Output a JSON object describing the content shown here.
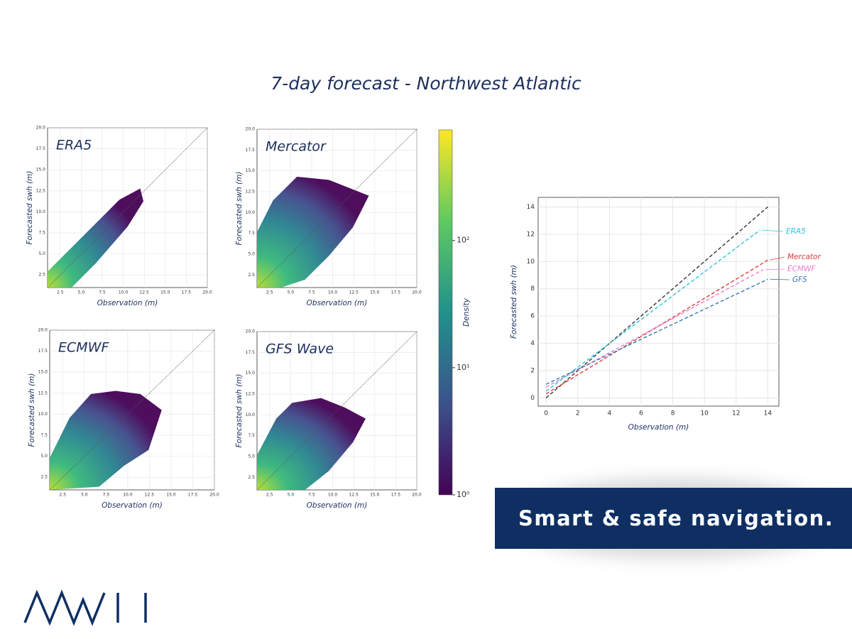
{
  "title": "7-day forecast - Northwest Atlantic",
  "banner": "Smart & safe navigation.",
  "chart_data": [
    {
      "type": "density",
      "title": "ERA5",
      "x_label": "Observation (m)",
      "y_label": "Forecasted swh (m)",
      "xlim": [
        1,
        20
      ],
      "ylim": [
        1,
        20
      ],
      "xticks": [
        2.5,
        {
          "value": 5,
          "label": "5.0"
        },
        7.5,
        {
          "value": 10,
          "label": "10.0"
        },
        12.5,
        {
          "value": 15,
          "label": "15.0"
        },
        17.5,
        {
          "value": 20,
          "label": "20.0"
        }
      ],
      "yticks": [
        2.5,
        {
          "value": 5,
          "label": "5.0"
        },
        7.5,
        {
          "value": 10,
          "label": "10.0"
        },
        12.5,
        {
          "value": 15,
          "label": "15.0"
        },
        17.5,
        {
          "value": 20,
          "label": "20.0"
        }
      ],
      "grid": true
    },
    {
      "type": "density",
      "title": "Mercator",
      "x_label": "Observation (m)",
      "y_label": "Forecasted swh (m)",
      "xlim": [
        1,
        20
      ],
      "ylim": [
        1,
        20
      ],
      "xticks": [
        2.5,
        {
          "value": 5,
          "label": "5.0"
        },
        7.5,
        {
          "value": 10,
          "label": "10.0"
        },
        12.5,
        {
          "value": 15,
          "label": "15.0"
        },
        17.5,
        {
          "value": 20,
          "label": "20.0"
        }
      ],
      "yticks": [
        2.5,
        {
          "value": 5,
          "label": "5.0"
        },
        7.5,
        {
          "value": 10,
          "label": "10.0"
        },
        12.5,
        {
          "value": 15,
          "label": "15.0"
        },
        17.5,
        {
          "value": 20,
          "label": "20.0"
        }
      ],
      "grid": true
    },
    {
      "type": "density",
      "title": "ECMWF",
      "x_label": "Observation (m)",
      "y_label": "Forecasted swh (m)",
      "xlim": [
        1,
        20
      ],
      "ylim": [
        1,
        20
      ],
      "xticks": [
        2.5,
        {
          "value": 5,
          "label": "5.0"
        },
        7.5,
        {
          "value": 10,
          "label": "10.0"
        },
        12.5,
        {
          "value": 15,
          "label": "15.0"
        },
        17.5,
        {
          "value": 20,
          "label": "20.0"
        }
      ],
      "yticks": [
        2.5,
        {
          "value": 5,
          "label": "5.0"
        },
        7.5,
        {
          "value": 10,
          "label": "10.0"
        },
        12.5,
        {
          "value": 15,
          "label": "15.0"
        },
        17.5,
        {
          "value": 20,
          "label": "20.0"
        }
      ],
      "grid": true
    },
    {
      "type": "density",
      "title": "GFS Wave",
      "x_label": "Observation (m)",
      "y_label": "Forecasted swh (m)",
      "xlim": [
        1,
        20
      ],
      "ylim": [
        1,
        20
      ],
      "xticks": [
        2.5,
        {
          "value": 5,
          "label": "5.0"
        },
        7.5,
        {
          "value": 10,
          "label": "10.0"
        },
        12.5,
        {
          "value": 15,
          "label": "15.0"
        },
        17.5,
        {
          "value": 20,
          "label": "20.0"
        }
      ],
      "yticks": [
        2.5,
        {
          "value": 5,
          "label": "5.0"
        },
        7.5,
        {
          "value": 10,
          "label": "10.0"
        },
        12.5,
        {
          "value": 15,
          "label": "15.0"
        },
        17.5,
        {
          "value": 20,
          "label": "20.0"
        }
      ],
      "grid": true
    },
    {
      "type": "colorbar",
      "label": "Density",
      "log_scale": true,
      "ylim": [
        1,
        740
      ],
      "yticks": [
        {
          "value": 1,
          "label": "10⁰"
        },
        {
          "value": 10,
          "label": "10¹"
        },
        {
          "value": 100,
          "label": "10²"
        }
      ]
    },
    {
      "type": "line",
      "x_label": "Observation (m)",
      "y_label": "Forecasted swh (m)",
      "xlim": [
        -0.5,
        14.7
      ],
      "ylim": [
        -0.6,
        14.7
      ],
      "xticks": [
        0,
        2,
        4,
        6,
        8,
        10,
        12,
        14
      ],
      "yticks": [
        0,
        2,
        4,
        6,
        8,
        10,
        12,
        14
      ],
      "grid": true,
      "series": [
        {
          "color": "#333333",
          "x": [
            0,
            14
          ],
          "values": [
            0,
            14
          ]
        },
        {
          "name": "ERA5",
          "color": "#2bc4d8",
          "x": [
            0,
            13.5
          ],
          "values": [
            0.5,
            12.3
          ]
        },
        {
          "name": "Mercator",
          "color": "#e03a3a",
          "x": [
            0,
            14
          ],
          "values": [
            0.3,
            10.1
          ]
        },
        {
          "name": "ECMWF",
          "color": "#e87fd0",
          "x": [
            0,
            13.7
          ],
          "values": [
            0.8,
            9.4
          ]
        },
        {
          "name": "GFS",
          "color": "#3a78b5",
          "x": [
            0,
            14
          ],
          "values": [
            1.0,
            8.7
          ]
        }
      ]
    }
  ]
}
